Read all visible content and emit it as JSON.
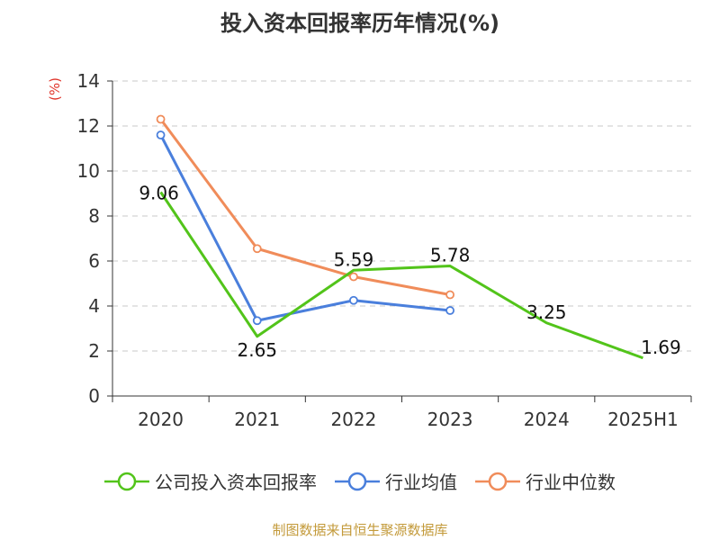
{
  "chart_data": {
    "type": "line",
    "title": "投入资本回报率历年情况(%)",
    "unit_label": "(%)",
    "categories": [
      "2020",
      "2021",
      "2022",
      "2023",
      "2024",
      "2025H1"
    ],
    "ylim": [
      0,
      14
    ],
    "yticks": [
      "0",
      "2",
      "4",
      "6",
      "8",
      "10",
      "12",
      "14"
    ],
    "grid": true,
    "legend_position": "bottom",
    "series": [
      {
        "name": "公司投入资本回报率",
        "color": "#52c41a",
        "values": [
          9.06,
          2.65,
          5.59,
          5.78,
          3.25,
          1.69
        ],
        "labels": [
          "9.06",
          "2.65",
          "5.59",
          "5.78",
          "3.25",
          "1.69"
        ]
      },
      {
        "name": "行业均值",
        "color": "#4a7fdc",
        "values": [
          11.6,
          3.35,
          4.25,
          3.8,
          null,
          null
        ]
      },
      {
        "name": "行业中位数",
        "color": "#f08c5a",
        "values": [
          12.3,
          6.55,
          5.3,
          4.5,
          null,
          null
        ]
      }
    ]
  },
  "source": "制图数据来自恒生聚源数据库"
}
